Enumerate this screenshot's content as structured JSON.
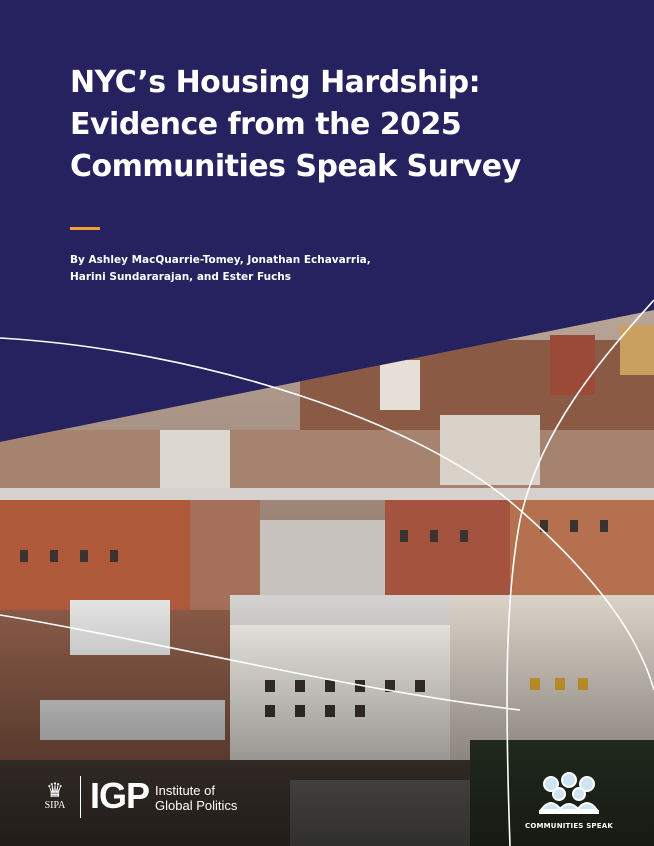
{
  "cover": {
    "title_lines": [
      "NYC’s Housing Hardship:",
      "Evidence from the 2025",
      "Communities Speak Survey"
    ],
    "byline_lines": [
      "By Ashley MacQuarrie-Tomey, Jonathan Echavarria,",
      "Harini Sundararajan, and Ester Fuchs"
    ],
    "background_color": "#26215f",
    "accent_color": "#f0a030",
    "image": "aerial-photo-of-nyc-brownstone-rowhouses"
  },
  "logos": {
    "sipa": {
      "text": "SIPA",
      "icon": "crown-icon"
    },
    "igp": {
      "abbr": "IGP",
      "name_lines": [
        "Institute of",
        "Global Politics"
      ]
    },
    "communities_speak": {
      "text": "COMMUNITIES SPEAK",
      "icon": "people-group-icon"
    }
  }
}
